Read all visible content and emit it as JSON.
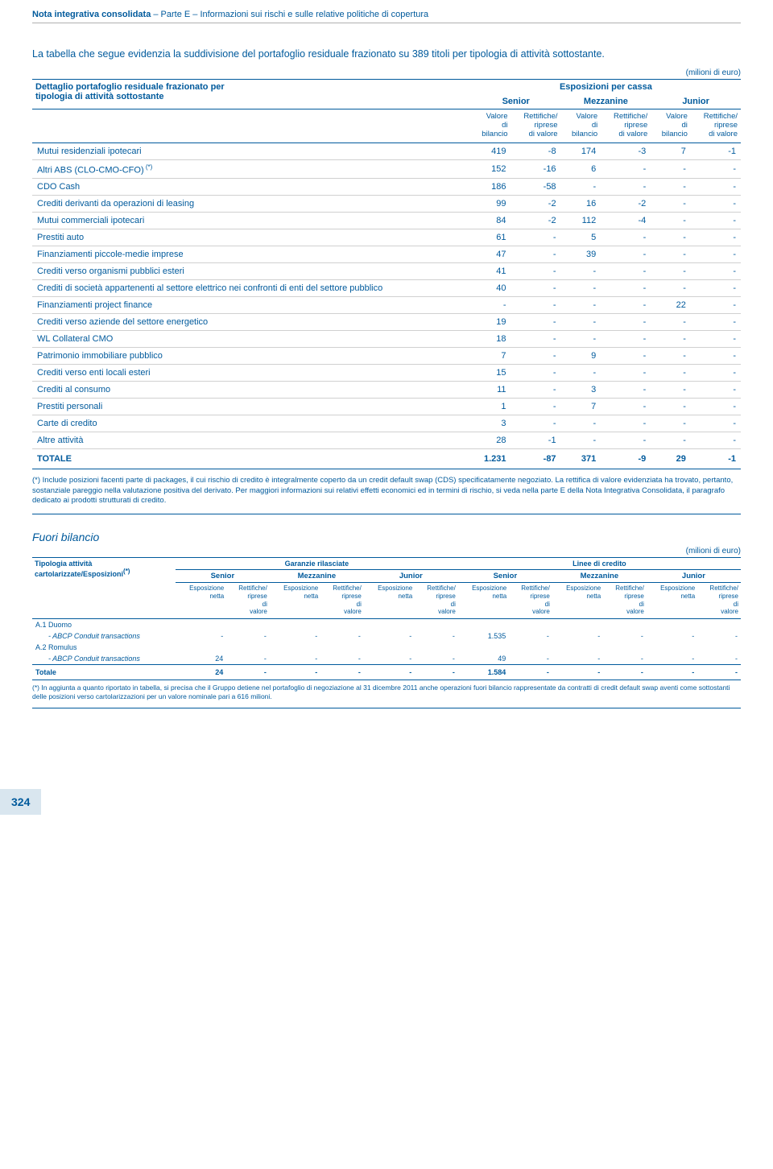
{
  "header": {
    "bold_part": "Nota integrativa consolidata",
    "rest": " – Parte E – Informazioni sui rischi e sulle relative politiche di copertura"
  },
  "intro": "La tabella che segue evidenzia la suddivisione del portafoglio residuale frazionato su 389 titoli per tipologia di attività sottostante.",
  "unit": "(milioni di euro)",
  "table1": {
    "title_l1": "Dettaglio portafoglio residuale frazionato per",
    "title_l2": "tipologia di attività sottostante",
    "span_header": "Esposizioni per cassa",
    "groups": [
      "Senior",
      "Mezzanine",
      "Junior"
    ],
    "sub_a": "Valore\ndi\nbilancio",
    "sub_b": "Rettifiche/\nriprese\ndi valore",
    "rows": [
      {
        "label": "Mutui residenziali ipotecari",
        "v": [
          "419",
          "-8",
          "174",
          "-3",
          "7",
          "-1"
        ]
      },
      {
        "label": "Altri ABS (CLO-CMO-CFO)",
        "sup": "(*)",
        "v": [
          "152",
          "-16",
          "6",
          "-",
          "-",
          "-"
        ]
      },
      {
        "label": "CDO Cash",
        "v": [
          "186",
          "-58",
          "-",
          "-",
          "-",
          "-"
        ]
      },
      {
        "label": "Crediti derivanti da operazioni di leasing",
        "v": [
          "99",
          "-2",
          "16",
          "-2",
          "-",
          "-"
        ]
      },
      {
        "label": "Mutui commerciali ipotecari",
        "v": [
          "84",
          "-2",
          "112",
          "-4",
          "-",
          "-"
        ]
      },
      {
        "label": "Prestiti auto",
        "v": [
          "61",
          "-",
          "5",
          "-",
          "-",
          "-"
        ]
      },
      {
        "label": "Finanziamenti piccole-medie imprese",
        "v": [
          "47",
          "-",
          "39",
          "-",
          "-",
          "-"
        ]
      },
      {
        "label": "Crediti verso organismi pubblici esteri",
        "v": [
          "41",
          "-",
          "-",
          "-",
          "-",
          "-"
        ]
      },
      {
        "label": "Crediti di società appartenenti al settore elettrico nei confronti di enti del settore pubblico",
        "v": [
          "40",
          "-",
          "-",
          "-",
          "-",
          "-"
        ]
      },
      {
        "label": "Finanziamenti project finance",
        "v": [
          "-",
          "-",
          "-",
          "-",
          "22",
          "-"
        ]
      },
      {
        "label": "Crediti verso aziende del settore energetico",
        "v": [
          "19",
          "-",
          "-",
          "-",
          "-",
          "-"
        ]
      },
      {
        "label": "WL Collateral CMO",
        "v": [
          "18",
          "-",
          "-",
          "-",
          "-",
          "-"
        ]
      },
      {
        "label": "Patrimonio immobiliare pubblico",
        "v": [
          "7",
          "-",
          "9",
          "-",
          "-",
          "-"
        ]
      },
      {
        "label": "Crediti verso enti locali esteri",
        "v": [
          "15",
          "-",
          "-",
          "-",
          "-",
          "-"
        ]
      },
      {
        "label": "Crediti al consumo",
        "v": [
          "11",
          "-",
          "3",
          "-",
          "-",
          "-"
        ]
      },
      {
        "label": "Prestiti personali",
        "v": [
          "1",
          "-",
          "7",
          "-",
          "-",
          "-"
        ]
      },
      {
        "label": "Carte di credito",
        "v": [
          "3",
          "-",
          "-",
          "-",
          "-",
          "-"
        ]
      },
      {
        "label": "Altre attività",
        "v": [
          "28",
          "-1",
          "-",
          "-",
          "-",
          "-"
        ]
      }
    ],
    "total": {
      "label": "TOTALE",
      "v": [
        "1.231",
        "-87",
        "371",
        "-9",
        "29",
        "-1"
      ]
    }
  },
  "footnote1": "(*) Include posizioni facenti parte di packages, il cui rischio di credito è integralmente coperto da un credit default swap (CDS) specificatamente negoziato. La rettifica di valore evidenziata ha trovato, pertanto, sostanziale pareggio nella valutazione positiva del derivato. Per maggiori informazioni sui relativi effetti economici ed in termini di rischio, si veda nella parte E della Nota Integrativa Consolidata, il paragrafo dedicato ai prodotti strutturati di credito.",
  "section2_title": "Fuori bilancio",
  "table2": {
    "h_left_l1": "Tipologia attività",
    "h_left_l2": "cartolarizzate/Esposizioni",
    "h_left_sup": "(*)",
    "group_a": "Garanzie rilasciate",
    "group_b": "Linee di credito",
    "subgroups": [
      "Senior",
      "Mezzanine",
      "Junior",
      "Senior",
      "Mezzanine",
      "Junior"
    ],
    "col_a": "Esposizione\nnetta",
    "col_b": "Rettifiche/\nriprese\ndi\nvalore",
    "rows": [
      {
        "label": "A.1 Duomo",
        "italic": false,
        "v": [
          "",
          "",
          "",
          "",
          "",
          "",
          "",
          "",
          "",
          "",
          "",
          ""
        ]
      },
      {
        "label": "- ABCP Conduit transactions",
        "italic": true,
        "v": [
          "-",
          "-",
          "-",
          "-",
          "-",
          "-",
          "1.535",
          "-",
          "-",
          "-",
          "-",
          "-"
        ]
      },
      {
        "label": "A.2 Romulus",
        "italic": false,
        "v": [
          "",
          "",
          "",
          "",
          "",
          "",
          "",
          "",
          "",
          "",
          "",
          ""
        ]
      },
      {
        "label": "- ABCP Conduit transactions",
        "italic": true,
        "v": [
          "24",
          "-",
          "-",
          "-",
          "-",
          "-",
          "49",
          "-",
          "-",
          "-",
          "-",
          "-"
        ]
      }
    ],
    "total": {
      "label": "Totale",
      "v": [
        "24",
        "-",
        "-",
        "-",
        "-",
        "-",
        "1.584",
        "-",
        "-",
        "-",
        "-",
        "-"
      ]
    }
  },
  "footnote2": "(*) In aggiunta a quanto riportato in tabella, si precisa che il Gruppo detiene nel portafoglio di negoziazione al 31 dicembre 2011 anche operazioni fuori bilancio rappresentate da contratti di credit default swap aventi come sottostanti delle posizioni verso cartolarizzazioni per un valore nominale pari a 616 milioni.",
  "page_number": "324"
}
